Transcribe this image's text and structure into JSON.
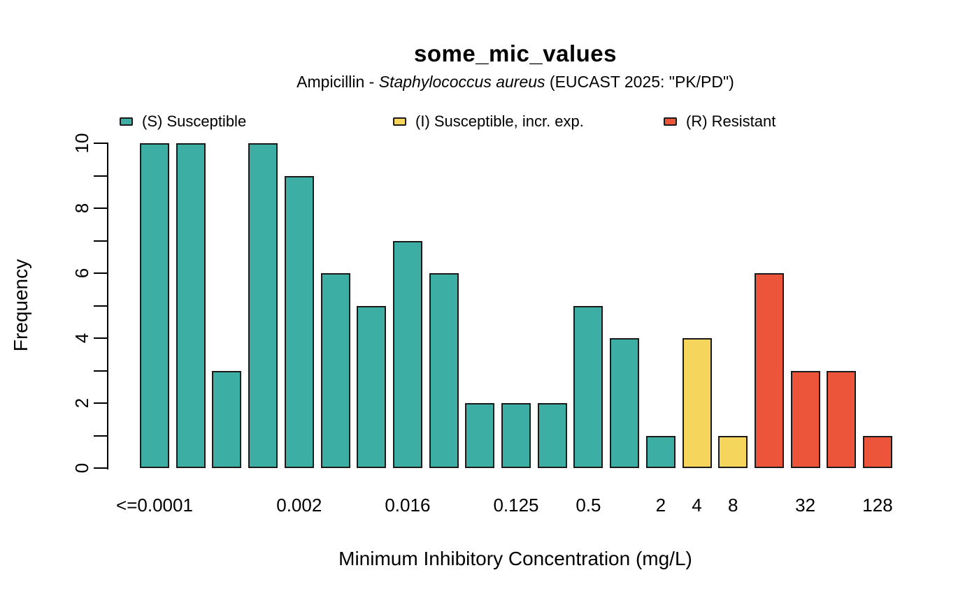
{
  "chart_data": {
    "type": "bar",
    "title": "some_mic_values",
    "subtitle": {
      "prefix": "Ampicillin - ",
      "italic": "Staphylococcus aureus",
      "suffix": " (EUCAST 2025: \"PK/PD\")"
    },
    "xlabel": "Minimum Inhibitory Concentration (mg/L)",
    "ylabel": "Frequency",
    "ylim": [
      0,
      10
    ],
    "y_tick_step": 1,
    "y_ticks_labeled": [
      0,
      2,
      4,
      6,
      8,
      10
    ],
    "grid": "off",
    "legend_position": "top",
    "values": [
      10,
      10,
      3,
      10,
      9,
      6,
      5,
      7,
      6,
      2,
      2,
      2,
      5,
      4,
      1,
      4,
      1,
      6,
      3,
      3,
      1
    ],
    "classes": [
      "S",
      "S",
      "S",
      "S",
      "S",
      "S",
      "S",
      "S",
      "S",
      "S",
      "S",
      "S",
      "S",
      "S",
      "S",
      "I",
      "I",
      "R",
      "R",
      "R",
      "R"
    ],
    "x_ticks": [
      {
        "label": "<=0.0001",
        "bar": 1
      },
      {
        "label": "0.002",
        "bar": 5
      },
      {
        "label": "0.016",
        "bar": 8
      },
      {
        "label": "0.125",
        "bar": 11
      },
      {
        "label": "0.5",
        "bar": 13
      },
      {
        "label": "2",
        "bar": 15
      },
      {
        "label": "4",
        "bar": 16
      },
      {
        "label": "8",
        "bar": 17
      },
      {
        "label": "32",
        "bar": 19
      },
      {
        "label": "128",
        "bar": 21
      }
    ],
    "legend": [
      {
        "code": "S",
        "label": "(S) Susceptible"
      },
      {
        "code": "I",
        "label": "(I) Susceptible, incr. exp."
      },
      {
        "code": "R",
        "label": "(R) Resistant"
      }
    ],
    "colors": {
      "S": "#3CAEA3",
      "I": "#F6D55C",
      "R": "#ED553B",
      "bar_border": "#1b1b1b",
      "axis": "#000000"
    }
  }
}
